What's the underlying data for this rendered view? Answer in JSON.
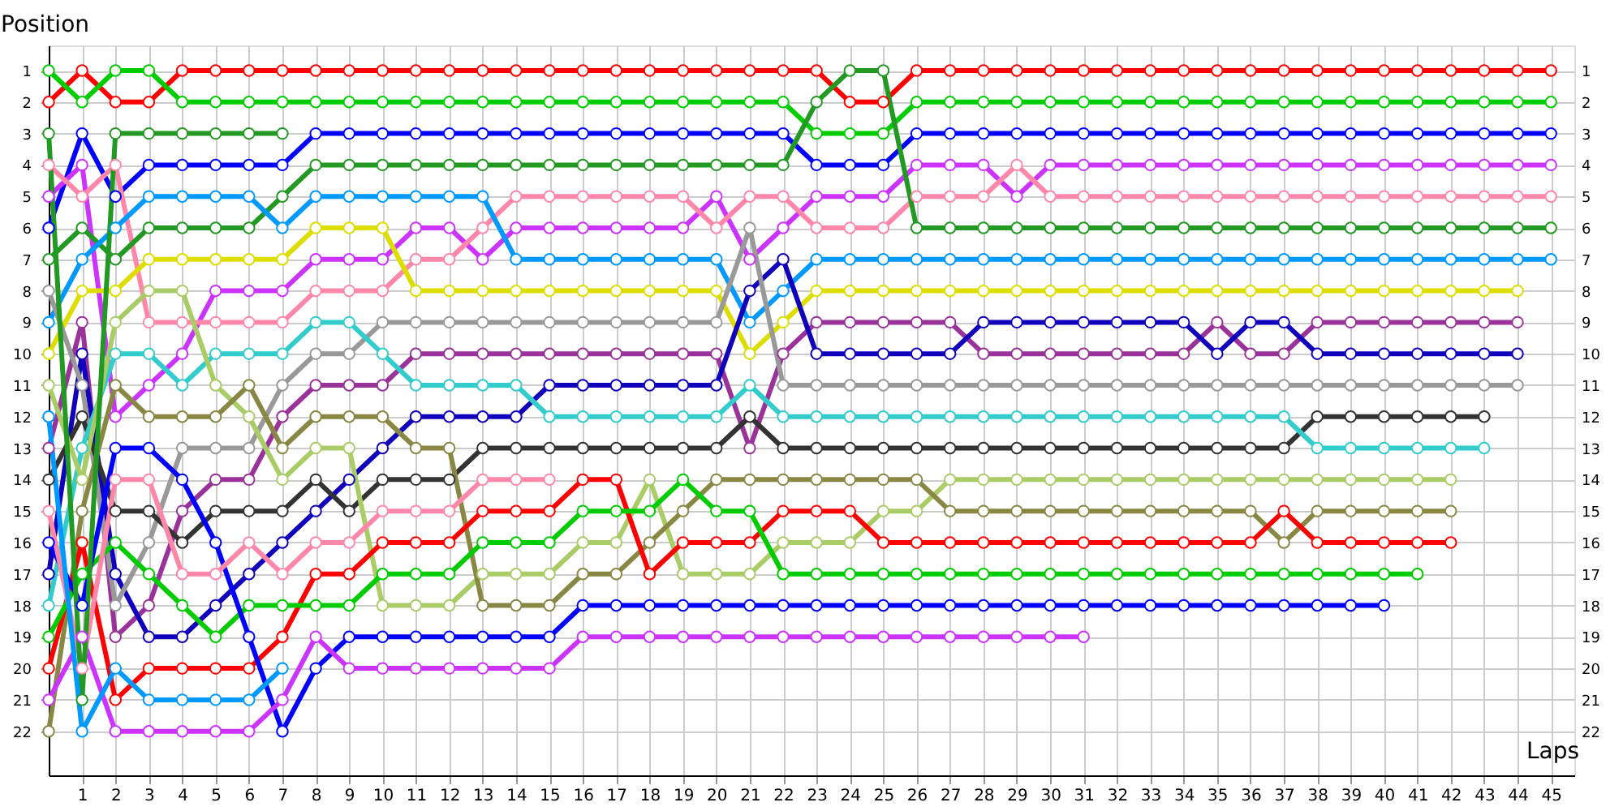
{
  "chart_data": {
    "type": "line",
    "xlabel": "Laps",
    "ylabel": "Position",
    "x": [
      0,
      1,
      2,
      3,
      4,
      5,
      6,
      7,
      8,
      9,
      10,
      11,
      12,
      13,
      14,
      15,
      16,
      17,
      18,
      19,
      20,
      21,
      22,
      23,
      24,
      25,
      26,
      27,
      28,
      29,
      30,
      31,
      32,
      33,
      34,
      35,
      36,
      37,
      38,
      39,
      40,
      41,
      42,
      43,
      44,
      45
    ],
    "xlim": [
      0,
      45.7
    ],
    "xticks": [
      1,
      2,
      3,
      4,
      5,
      6,
      7,
      8,
      9,
      10,
      11,
      12,
      13,
      14,
      15,
      16,
      17,
      18,
      19,
      20,
      21,
      22,
      23,
      24,
      25,
      26,
      27,
      28,
      29,
      30,
      31,
      32,
      33,
      34,
      35,
      36,
      37,
      38,
      39,
      40,
      41,
      42,
      43,
      44,
      45
    ],
    "ylim": [
      23.4,
      0.2
    ],
    "yticks": [
      1,
      2,
      3,
      4,
      5,
      6,
      7,
      8,
      9,
      10,
      11,
      12,
      13,
      14,
      15,
      16,
      17,
      18,
      19,
      20,
      21,
      22
    ],
    "y2lim": [
      23.4,
      0.2
    ],
    "y2ticks": [
      1,
      2,
      3,
      4,
      5,
      6,
      7,
      8,
      9,
      10,
      11,
      12,
      13,
      14,
      15,
      16,
      17,
      18,
      19,
      20,
      21,
      22
    ],
    "grid": true,
    "marker": "circle",
    "line_style": "solid",
    "series": [
      {
        "color": "#ff0000",
        "values": [
          2,
          1,
          2,
          2,
          1,
          1,
          1,
          1,
          1,
          1,
          1,
          1,
          1,
          1,
          1,
          1,
          1,
          1,
          1,
          1,
          1,
          1,
          1,
          1,
          2,
          2,
          1,
          1,
          1,
          1,
          1,
          1,
          1,
          1,
          1,
          1,
          1,
          1,
          1,
          1,
          1,
          1,
          1,
          1,
          1,
          1
        ]
      },
      {
        "color": "#00cc00",
        "values": [
          1,
          2,
          1,
          1,
          2,
          2,
          2,
          2,
          2,
          2,
          2,
          2,
          2,
          2,
          2,
          2,
          2,
          2,
          2,
          2,
          2,
          2,
          2,
          3,
          3,
          3,
          2,
          2,
          2,
          2,
          2,
          2,
          2,
          2,
          2,
          2,
          2,
          2,
          2,
          2,
          2,
          2,
          2,
          2,
          2,
          2
        ]
      },
      {
        "color": "#0000ff",
        "values": [
          6,
          3,
          5,
          4,
          4,
          4,
          4,
          4,
          3,
          3,
          3,
          3,
          3,
          3,
          3,
          3,
          3,
          3,
          3,
          3,
          3,
          3,
          3,
          4,
          4,
          4,
          3,
          3,
          3,
          3,
          3,
          3,
          3,
          3,
          3,
          3,
          3,
          3,
          3,
          3,
          3,
          3,
          3,
          3,
          3,
          3
        ]
      },
      {
        "color": "#cc33ff",
        "values": [
          5,
          4,
          12,
          11,
          10,
          8,
          8,
          8,
          7,
          7,
          7,
          6,
          6,
          7,
          6,
          6,
          6,
          6,
          6,
          6,
          5,
          7,
          6,
          5,
          5,
          5,
          4,
          4,
          4,
          5,
          4,
          4,
          4,
          4,
          4,
          4,
          4,
          4,
          4,
          4,
          4,
          4,
          4,
          4,
          4,
          4
        ]
      },
      {
        "color": "#ff88aa",
        "values": [
          4,
          5,
          4,
          9,
          9,
          9,
          9,
          9,
          8,
          8,
          8,
          7,
          7,
          6,
          5,
          5,
          5,
          5,
          5,
          5,
          6,
          5,
          5,
          6,
          6,
          6,
          5,
          5,
          5,
          4,
          5,
          5,
          5,
          5,
          5,
          5,
          5,
          5,
          5,
          5,
          5,
          5,
          5,
          5,
          5,
          5
        ]
      },
      {
        "color": "#229922",
        "values": [
          7,
          6,
          7,
          6,
          6,
          6,
          6,
          5,
          4,
          4,
          4,
          4,
          4,
          4,
          4,
          4,
          4,
          4,
          4,
          4,
          4,
          4,
          4,
          2,
          1,
          1,
          6,
          6,
          6,
          6,
          6,
          6,
          6,
          6,
          6,
          6,
          6,
          6,
          6,
          6,
          6,
          6,
          6,
          6,
          6,
          6
        ]
      },
      {
        "color": "#0099ff",
        "values": [
          9,
          7,
          6,
          5,
          5,
          5,
          5,
          6,
          5,
          5,
          5,
          5,
          5,
          5,
          7,
          7,
          7,
          7,
          7,
          7,
          7,
          9,
          8,
          7,
          7,
          7,
          7,
          7,
          7,
          7,
          7,
          7,
          7,
          7,
          7,
          7,
          7,
          7,
          7,
          7,
          7,
          7,
          7,
          7,
          7,
          7
        ]
      },
      {
        "color": "#dddd00",
        "values": [
          10,
          8,
          8,
          7,
          7,
          7,
          7,
          7,
          6,
          6,
          6,
          8,
          8,
          8,
          8,
          8,
          8,
          8,
          8,
          8,
          8,
          10,
          9,
          8,
          8,
          8,
          8,
          8,
          8,
          8,
          8,
          8,
          8,
          8,
          8,
          8,
          8,
          8,
          8,
          8,
          8,
          8,
          8,
          8,
          8,
          null
        ]
      },
      {
        "color": "#993399",
        "values": [
          13,
          9,
          19,
          18,
          15,
          14,
          14,
          12,
          11,
          11,
          11,
          10,
          10,
          10,
          10,
          10,
          10,
          10,
          10,
          10,
          10,
          13,
          10,
          9,
          9,
          9,
          9,
          9,
          10,
          10,
          10,
          10,
          10,
          10,
          10,
          9,
          10,
          10,
          9,
          9,
          9,
          9,
          9,
          9,
          9,
          null
        ]
      },
      {
        "color": "#1100bb",
        "values": [
          17,
          10,
          17,
          19,
          19,
          18,
          17,
          16,
          15,
          14,
          13,
          12,
          12,
          12,
          12,
          11,
          11,
          11,
          11,
          11,
          11,
          8,
          7,
          10,
          10,
          10,
          10,
          10,
          9,
          9,
          9,
          9,
          9,
          9,
          9,
          10,
          9,
          9,
          10,
          10,
          10,
          10,
          10,
          10,
          10,
          null
        ]
      },
      {
        "color": "#999999",
        "values": [
          8,
          11,
          18,
          16,
          13,
          13,
          13,
          11,
          10,
          10,
          9,
          9,
          9,
          9,
          9,
          9,
          9,
          9,
          9,
          9,
          9,
          6,
          11,
          11,
          11,
          11,
          11,
          11,
          11,
          11,
          11,
          11,
          11,
          11,
          11,
          11,
          11,
          11,
          11,
          11,
          11,
          11,
          11,
          11,
          11,
          null
        ]
      },
      {
        "color": "#333333",
        "values": [
          14,
          12,
          15,
          15,
          16,
          15,
          15,
          15,
          14,
          15,
          14,
          14,
          14,
          13,
          13,
          13,
          13,
          13,
          13,
          13,
          13,
          12,
          13,
          13,
          13,
          13,
          13,
          13,
          13,
          13,
          13,
          13,
          13,
          13,
          13,
          13,
          13,
          13,
          12,
          12,
          12,
          12,
          12,
          12,
          null,
          null
        ]
      },
      {
        "color": "#33cccc",
        "values": [
          18,
          13,
          10,
          10,
          11,
          10,
          10,
          10,
          9,
          9,
          10,
          11,
          11,
          11,
          11,
          12,
          12,
          12,
          12,
          12,
          12,
          11,
          12,
          12,
          12,
          12,
          12,
          12,
          12,
          12,
          12,
          12,
          12,
          12,
          12,
          12,
          12,
          12,
          13,
          13,
          13,
          13,
          13,
          13,
          null,
          null
        ]
      },
      {
        "color": "#aacc66",
        "values": [
          11,
          14,
          9,
          8,
          8,
          11,
          12,
          14,
          13,
          13,
          18,
          18,
          18,
          17,
          17,
          17,
          16,
          16,
          14,
          17,
          17,
          17,
          16,
          16,
          16,
          15,
          15,
          14,
          14,
          14,
          14,
          14,
          14,
          14,
          14,
          14,
          14,
          14,
          14,
          14,
          14,
          14,
          14,
          null,
          null,
          null
        ]
      },
      {
        "color": "#888844",
        "values": [
          22,
          15,
          11,
          12,
          12,
          12,
          11,
          13,
          12,
          12,
          12,
          13,
          13,
          18,
          18,
          18,
          17,
          17,
          16,
          15,
          14,
          14,
          14,
          14,
          14,
          14,
          14,
          15,
          15,
          15,
          15,
          15,
          15,
          15,
          15,
          15,
          15,
          16,
          15,
          15,
          15,
          15,
          15,
          null,
          null,
          null
        ]
      },
      {
        "color": "#ff0000",
        "values": [
          20,
          16,
          21,
          20,
          20,
          20,
          20,
          19,
          17,
          17,
          16,
          16,
          16,
          15,
          15,
          15,
          14,
          14,
          17,
          16,
          16,
          16,
          15,
          15,
          15,
          16,
          16,
          16,
          16,
          16,
          16,
          16,
          16,
          16,
          16,
          16,
          16,
          15,
          16,
          16,
          16,
          16,
          16,
          null,
          null,
          null
        ]
      },
      {
        "color": "#00cc00",
        "values": [
          19,
          17,
          16,
          17,
          18,
          19,
          18,
          18,
          18,
          18,
          17,
          17,
          17,
          16,
          16,
          16,
          15,
          15,
          15,
          14,
          15,
          15,
          17,
          17,
          17,
          17,
          17,
          17,
          17,
          17,
          17,
          17,
          17,
          17,
          17,
          17,
          17,
          17,
          17,
          17,
          17,
          17,
          null,
          null,
          null,
          null
        ]
      },
      {
        "color": "#0000ff",
        "values": [
          16,
          18,
          13,
          13,
          14,
          16,
          19,
          22,
          20,
          19,
          19,
          19,
          19,
          19,
          19,
          19,
          18,
          18,
          18,
          18,
          18,
          18,
          18,
          18,
          18,
          18,
          18,
          18,
          18,
          18,
          18,
          18,
          18,
          18,
          18,
          18,
          18,
          18,
          18,
          18,
          18,
          null,
          null,
          null,
          null,
          null
        ]
      },
      {
        "color": "#cc33ff",
        "values": [
          21,
          19,
          22,
          22,
          22,
          22,
          22,
          21,
          19,
          20,
          20,
          20,
          20,
          20,
          20,
          20,
          19,
          19,
          19,
          19,
          19,
          19,
          19,
          19,
          19,
          19,
          19,
          19,
          19,
          19,
          19,
          19,
          null,
          null,
          null,
          null,
          null,
          null,
          null,
          null,
          null,
          null,
          null,
          null,
          null,
          null
        ]
      },
      {
        "color": "#ff88aa",
        "values": [
          15,
          20,
          14,
          14,
          17,
          17,
          16,
          17,
          16,
          16,
          15,
          15,
          15,
          14,
          14,
          14,
          null,
          null,
          null,
          null,
          null,
          null,
          null,
          null,
          null,
          null,
          null,
          null,
          null,
          null,
          null,
          null,
          null,
          null,
          null,
          null,
          null,
          null,
          null,
          null,
          null,
          null,
          null,
          null,
          null,
          null
        ]
      },
      {
        "color": "#229922",
        "values": [
          3,
          21,
          3,
          3,
          3,
          3,
          3,
          3,
          null,
          null,
          null,
          null,
          null,
          null,
          null,
          null,
          null,
          null,
          null,
          null,
          null,
          null,
          null,
          null,
          null,
          null,
          null,
          null,
          null,
          null,
          null,
          null,
          null,
          null,
          null,
          null,
          null,
          null,
          null,
          null,
          null,
          null,
          null,
          null,
          null,
          null
        ]
      },
      {
        "color": "#0099ff",
        "values": [
          12,
          22,
          20,
          21,
          21,
          21,
          21,
          20,
          null,
          null,
          null,
          null,
          null,
          null,
          null,
          null,
          null,
          null,
          null,
          null,
          null,
          null,
          null,
          null,
          null,
          null,
          null,
          null,
          null,
          null,
          null,
          null,
          null,
          null,
          null,
          null,
          null,
          null,
          null,
          null,
          null,
          null,
          null,
          null,
          null,
          null
        ]
      }
    ]
  }
}
